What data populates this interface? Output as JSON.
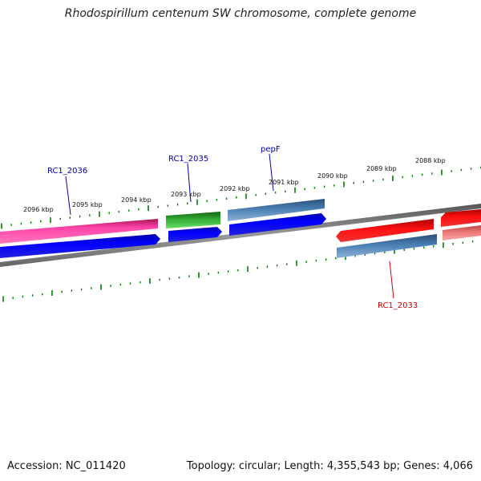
{
  "title": "Rhodospirillum centenum SW chromosome, complete genome",
  "accession": "Accession: NC_011420",
  "summary": "Topology: circular; Length: 4,355,543 bp; Genes: 4,066",
  "ticks": [
    "2096 kbp",
    "2095 kbp",
    "2094 kbp",
    "2093 kbp",
    "2092 kbp",
    "2091 kbp",
    "2090 kbp",
    "2089 kbp",
    "2088 kbp"
  ],
  "gene_labels": [
    {
      "name": "RC1_2036",
      "color": "#0000aa"
    },
    {
      "name": "RC1_2035",
      "color": "#0000aa"
    },
    {
      "name": "pepF",
      "color": "#0000aa"
    },
    {
      "name": "RC1_2033",
      "color": "#cc0000"
    }
  ],
  "colors": {
    "backbone": "#808080",
    "scale_ticks": "#008000",
    "magenta": "#ff3399",
    "blue": "#0000ee",
    "green": "#33aa33",
    "steelblue": "#4477aa",
    "red": "#ee0000",
    "pink": "#ee7777"
  }
}
